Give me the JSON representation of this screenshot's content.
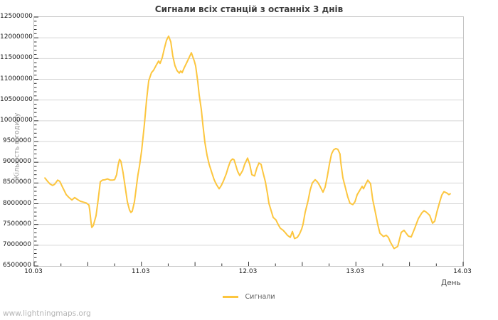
{
  "page": {
    "footer_text": "www.lightningmaps.org"
  },
  "colors": {
    "line": "#fcc63f",
    "grid": "#d6d6d6",
    "border": "#c4c4c4",
    "tick": "#333333"
  },
  "chart_data": {
    "type": "line",
    "title": "Сигнали всіх станцій з останніх 3 днів",
    "xlabel": "День",
    "ylabel": "Кількість в годину",
    "legend_position": "bottom-center",
    "grid": true,
    "x_ticks": [
      "10.03",
      "11.03",
      "12.03",
      "13.03",
      "14.03"
    ],
    "x_range": [
      0,
      4
    ],
    "ylim": [
      6500000,
      12500000
    ],
    "y_tick_step": 500000,
    "y_minor_step": 100000,
    "x_minor_step": 0.25,
    "series": [
      {
        "name": "Сигнали",
        "color": "#fcc63f",
        "points": [
          [
            0.1,
            8620000
          ],
          [
            0.119,
            8560000
          ],
          [
            0.146,
            8480000
          ],
          [
            0.172,
            8440000
          ],
          [
            0.192,
            8470000
          ],
          [
            0.219,
            8570000
          ],
          [
            0.239,
            8540000
          ],
          [
            0.265,
            8400000
          ],
          [
            0.299,
            8220000
          ],
          [
            0.325,
            8150000
          ],
          [
            0.352,
            8090000
          ],
          [
            0.378,
            8150000
          ],
          [
            0.405,
            8100000
          ],
          [
            0.431,
            8060000
          ],
          [
            0.458,
            8040000
          ],
          [
            0.484,
            8020000
          ],
          [
            0.511,
            7970000
          ],
          [
            0.518,
            7850000
          ],
          [
            0.531,
            7550000
          ],
          [
            0.537,
            7430000
          ],
          [
            0.551,
            7470000
          ],
          [
            0.577,
            7710000
          ],
          [
            0.597,
            8100000
          ],
          [
            0.617,
            8530000
          ],
          [
            0.637,
            8570000
          ],
          [
            0.663,
            8580000
          ],
          [
            0.683,
            8600000
          ],
          [
            0.71,
            8570000
          ],
          [
            0.73,
            8570000
          ],
          [
            0.75,
            8580000
          ],
          [
            0.769,
            8700000
          ],
          [
            0.783,
            8930000
          ],
          [
            0.796,
            9070000
          ],
          [
            0.809,
            9020000
          ],
          [
            0.829,
            8750000
          ],
          [
            0.849,
            8400000
          ],
          [
            0.869,
            8050000
          ],
          [
            0.889,
            7850000
          ],
          [
            0.902,
            7790000
          ],
          [
            0.915,
            7820000
          ],
          [
            0.935,
            8050000
          ],
          [
            0.955,
            8450000
          ],
          [
            0.968,
            8700000
          ],
          [
            0.982,
            8900000
          ],
          [
            1.002,
            9280000
          ],
          [
            1.028,
            9920000
          ],
          [
            1.048,
            10500000
          ],
          [
            1.068,
            10960000
          ],
          [
            1.094,
            11160000
          ],
          [
            1.114,
            11220000
          ],
          [
            1.134,
            11320000
          ],
          [
            1.161,
            11440000
          ],
          [
            1.174,
            11380000
          ],
          [
            1.194,
            11520000
          ],
          [
            1.214,
            11740000
          ],
          [
            1.234,
            11940000
          ],
          [
            1.254,
            12040000
          ],
          [
            1.274,
            11900000
          ],
          [
            1.293,
            11560000
          ],
          [
            1.313,
            11330000
          ],
          [
            1.333,
            11210000
          ],
          [
            1.353,
            11150000
          ],
          [
            1.366,
            11200000
          ],
          [
            1.38,
            11160000
          ],
          [
            1.4,
            11280000
          ],
          [
            1.426,
            11420000
          ],
          [
            1.446,
            11530000
          ],
          [
            1.466,
            11640000
          ],
          [
            1.493,
            11440000
          ],
          [
            1.506,
            11320000
          ],
          [
            1.526,
            10940000
          ],
          [
            1.539,
            10620000
          ],
          [
            1.559,
            10270000
          ],
          [
            1.572,
            9930000
          ],
          [
            1.592,
            9480000
          ],
          [
            1.612,
            9170000
          ],
          [
            1.632,
            8950000
          ],
          [
            1.658,
            8740000
          ],
          [
            1.678,
            8580000
          ],
          [
            1.698,
            8470000
          ],
          [
            1.725,
            8360000
          ],
          [
            1.745,
            8440000
          ],
          [
            1.765,
            8550000
          ],
          [
            1.791,
            8720000
          ],
          [
            1.811,
            8890000
          ],
          [
            1.831,
            9030000
          ],
          [
            1.851,
            9080000
          ],
          [
            1.864,
            9060000
          ],
          [
            1.877,
            8950000
          ],
          [
            1.897,
            8780000
          ],
          [
            1.917,
            8680000
          ],
          [
            1.944,
            8800000
          ],
          [
            1.963,
            8950000
          ],
          [
            1.99,
            9100000
          ],
          [
            2.01,
            8950000
          ],
          [
            2.03,
            8700000
          ],
          [
            2.056,
            8670000
          ],
          [
            2.076,
            8860000
          ],
          [
            2.096,
            8980000
          ],
          [
            2.116,
            8950000
          ],
          [
            2.129,
            8810000
          ],
          [
            2.156,
            8530000
          ],
          [
            2.176,
            8240000
          ],
          [
            2.189,
            8010000
          ],
          [
            2.209,
            7840000
          ],
          [
            2.229,
            7670000
          ],
          [
            2.255,
            7610000
          ],
          [
            2.275,
            7500000
          ],
          [
            2.295,
            7410000
          ],
          [
            2.322,
            7360000
          ],
          [
            2.342,
            7300000
          ],
          [
            2.361,
            7240000
          ],
          [
            2.388,
            7190000
          ],
          [
            2.408,
            7330000
          ],
          [
            2.428,
            7160000
          ],
          [
            2.454,
            7190000
          ],
          [
            2.474,
            7270000
          ],
          [
            2.494,
            7390000
          ],
          [
            2.507,
            7500000
          ],
          [
            2.527,
            7790000
          ],
          [
            2.554,
            8070000
          ],
          [
            2.574,
            8330000
          ],
          [
            2.594,
            8500000
          ],
          [
            2.62,
            8580000
          ],
          [
            2.64,
            8530000
          ],
          [
            2.66,
            8450000
          ],
          [
            2.673,
            8380000
          ],
          [
            2.693,
            8280000
          ],
          [
            2.713,
            8400000
          ],
          [
            2.733,
            8650000
          ],
          [
            2.753,
            8950000
          ],
          [
            2.773,
            9200000
          ],
          [
            2.793,
            9300000
          ],
          [
            2.813,
            9330000
          ],
          [
            2.832,
            9310000
          ],
          [
            2.852,
            9200000
          ],
          [
            2.859,
            9000000
          ],
          [
            2.879,
            8620000
          ],
          [
            2.905,
            8360000
          ],
          [
            2.925,
            8160000
          ],
          [
            2.945,
            8010000
          ],
          [
            2.972,
            7980000
          ],
          [
            2.992,
            8050000
          ],
          [
            3.012,
            8220000
          ],
          [
            3.038,
            8330000
          ],
          [
            3.058,
            8420000
          ],
          [
            3.071,
            8360000
          ],
          [
            3.091,
            8470000
          ],
          [
            3.111,
            8570000
          ],
          [
            3.137,
            8480000
          ],
          [
            3.157,
            8100000
          ],
          [
            3.184,
            7760000
          ],
          [
            3.204,
            7500000
          ],
          [
            3.224,
            7290000
          ],
          [
            3.257,
            7210000
          ],
          [
            3.283,
            7240000
          ],
          [
            3.303,
            7190000
          ],
          [
            3.323,
            7070000
          ],
          [
            3.356,
            6920000
          ],
          [
            3.39,
            6970000
          ],
          [
            3.423,
            7310000
          ],
          [
            3.449,
            7360000
          ],
          [
            3.489,
            7220000
          ],
          [
            3.516,
            7200000
          ],
          [
            3.549,
            7410000
          ],
          [
            3.582,
            7640000
          ],
          [
            3.615,
            7780000
          ],
          [
            3.635,
            7830000
          ],
          [
            3.655,
            7800000
          ],
          [
            3.688,
            7720000
          ],
          [
            3.715,
            7530000
          ],
          [
            3.735,
            7580000
          ],
          [
            3.755,
            7800000
          ],
          [
            3.781,
            8040000
          ],
          [
            3.801,
            8210000
          ],
          [
            3.821,
            8290000
          ],
          [
            3.847,
            8260000
          ],
          [
            3.867,
            8220000
          ],
          [
            3.88,
            8240000
          ]
        ]
      }
    ]
  }
}
